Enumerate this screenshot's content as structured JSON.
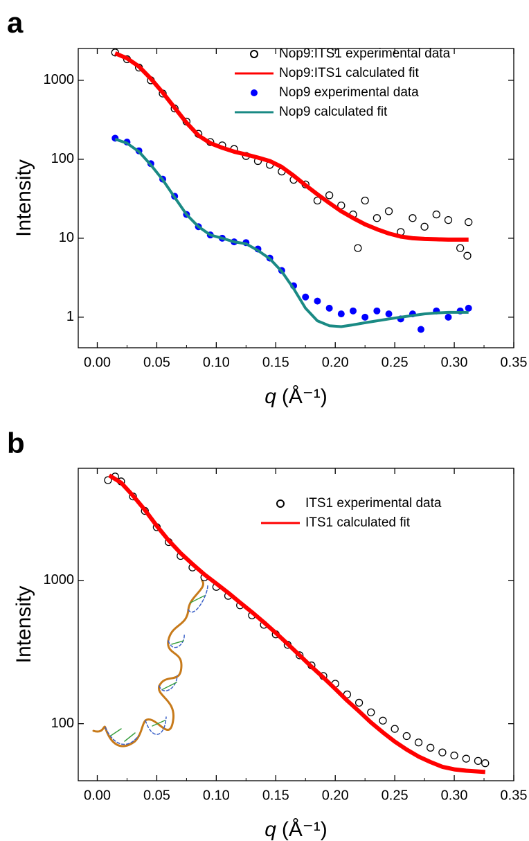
{
  "chart_data": [
    {
      "type": "line",
      "panel_label": "a",
      "y_label": "Intensity",
      "x_label_symbol": "q",
      "x_label_unit": "(Å⁻¹)",
      "log_y": true,
      "legend": "top-right",
      "xlim": [
        -0.016,
        0.35
      ],
      "xticks": [
        {
          "value": 0,
          "label": "0.00"
        },
        {
          "value": 0.05,
          "label": "0.05"
        },
        {
          "value": 0.1,
          "label": "0.10"
        },
        {
          "value": 0.15,
          "label": "0.15"
        },
        {
          "value": 0.2,
          "label": "0.20"
        },
        {
          "value": 0.25,
          "label": "0.25"
        },
        {
          "value": 0.3,
          "label": "0.30"
        },
        {
          "value": 0.35,
          "label": "0.35"
        }
      ],
      "ylim": [
        0.41,
        2530
      ],
      "yticks": [
        1,
        10,
        100,
        1000
      ],
      "series": [
        {
          "name": "Nop9:ITS1 experimental data",
          "style": "open-marker",
          "color": "#000000",
          "x": [
            0.015,
            0.025,
            0.035,
            0.045,
            0.055,
            0.065,
            0.075,
            0.085,
            0.095,
            0.105,
            0.115,
            0.125,
            0.135,
            0.145,
            0.155,
            0.165,
            0.175,
            0.185,
            0.195,
            0.205,
            0.215,
            0.219,
            0.225,
            0.235,
            0.245,
            0.255,
            0.265,
            0.275,
            0.285,
            0.295,
            0.305,
            0.311,
            0.312
          ],
          "values": [
            2250,
            1850,
            1450,
            1000,
            680,
            440,
            300,
            210,
            165,
            150,
            135,
            110,
            95,
            85,
            70,
            55,
            48,
            30,
            35,
            26,
            20,
            7.5,
            30,
            18,
            22,
            12,
            18,
            14,
            20,
            17,
            7.5,
            6,
            16
          ]
        },
        {
          "name": "Nop9:ITS1 calculated fit",
          "style": "line",
          "color": "#ff0000",
          "x": [
            0.015,
            0.025,
            0.035,
            0.045,
            0.055,
            0.065,
            0.075,
            0.085,
            0.095,
            0.105,
            0.115,
            0.125,
            0.135,
            0.145,
            0.155,
            0.165,
            0.175,
            0.185,
            0.195,
            0.205,
            0.215,
            0.225,
            0.235,
            0.245,
            0.255,
            0.265,
            0.275,
            0.285,
            0.295,
            0.312
          ],
          "values": [
            2200,
            1900,
            1500,
            1050,
            700,
            450,
            290,
            200,
            160,
            140,
            125,
            115,
            105,
            95,
            80,
            62,
            47,
            36,
            28,
            22,
            18,
            15,
            13,
            11.5,
            10.5,
            10,
            9.8,
            9.7,
            9.6,
            9.6
          ]
        },
        {
          "name": "Nop9 experimental data",
          "style": "filled-marker",
          "color": "#0000ff",
          "x": [
            0.015,
            0.025,
            0.035,
            0.045,
            0.055,
            0.065,
            0.075,
            0.085,
            0.095,
            0.105,
            0.115,
            0.125,
            0.135,
            0.145,
            0.155,
            0.165,
            0.175,
            0.185,
            0.195,
            0.205,
            0.215,
            0.225,
            0.235,
            0.245,
            0.255,
            0.265,
            0.272,
            0.285,
            0.295,
            0.305,
            0.312
          ],
          "values": [
            185,
            165,
            128,
            88,
            56,
            34,
            20,
            14,
            11,
            10,
            9,
            8.8,
            7.3,
            5.6,
            3.9,
            2.5,
            1.8,
            1.6,
            1.3,
            1.1,
            1.2,
            1.0,
            1.2,
            1.1,
            0.95,
            1.1,
            0.7,
            1.2,
            1.0,
            1.2,
            1.3
          ]
        },
        {
          "name": "Nop9 calculated fit",
          "style": "line",
          "color": "#1a8a84",
          "x": [
            0.015,
            0.025,
            0.035,
            0.045,
            0.055,
            0.065,
            0.075,
            0.085,
            0.095,
            0.105,
            0.115,
            0.125,
            0.135,
            0.145,
            0.155,
            0.165,
            0.175,
            0.185,
            0.195,
            0.205,
            0.215,
            0.225,
            0.235,
            0.245,
            0.255,
            0.265,
            0.275,
            0.285,
            0.295,
            0.312
          ],
          "values": [
            180,
            160,
            125,
            85,
            55,
            33,
            20,
            14,
            11,
            10,
            9,
            8.5,
            7,
            5.5,
            3.8,
            2.3,
            1.3,
            0.9,
            0.78,
            0.76,
            0.8,
            0.85,
            0.9,
            0.95,
            1.0,
            1.05,
            1.1,
            1.13,
            1.15,
            1.15
          ]
        }
      ]
    },
    {
      "type": "line",
      "panel_label": "b",
      "y_label": "Intensity",
      "x_label_symbol": "q",
      "x_label_unit": "(Å⁻¹)",
      "log_y": true,
      "legend": "top-right",
      "xlim": [
        -0.016,
        0.35
      ],
      "xticks": [
        {
          "value": 0,
          "label": "0.00"
        },
        {
          "value": 0.05,
          "label": "0.05"
        },
        {
          "value": 0.1,
          "label": "0.10"
        },
        {
          "value": 0.15,
          "label": "0.15"
        },
        {
          "value": 0.2,
          "label": "0.20"
        },
        {
          "value": 0.25,
          "label": "0.25"
        },
        {
          "value": 0.3,
          "label": "0.30"
        },
        {
          "value": 0.35,
          "label": "0.35"
        }
      ],
      "ylim": [
        40,
        6050
      ],
      "yticks": [
        100,
        1000
      ],
      "series": [
        {
          "name": "ITS1 experimental data",
          "style": "open-marker",
          "color": "#000000",
          "x": [
            0.009,
            0.015,
            0.02,
            0.03,
            0.04,
            0.05,
            0.06,
            0.07,
            0.08,
            0.09,
            0.1,
            0.11,
            0.12,
            0.13,
            0.14,
            0.15,
            0.16,
            0.17,
            0.18,
            0.19,
            0.2,
            0.21,
            0.22,
            0.23,
            0.24,
            0.25,
            0.26,
            0.27,
            0.28,
            0.29,
            0.3,
            0.31,
            0.32,
            0.326
          ],
          "values": [
            5000,
            5300,
            4900,
            3850,
            3050,
            2350,
            1850,
            1480,
            1230,
            1050,
            900,
            780,
            670,
            570,
            490,
            420,
            355,
            300,
            255,
            215,
            190,
            160,
            140,
            120,
            105,
            92,
            82,
            74,
            68,
            63,
            60,
            57,
            55,
            53
          ]
        },
        {
          "name": "ITS1 calculated fit",
          "style": "line",
          "color": "#ff0000",
          "x": [
            0.01,
            0.02,
            0.03,
            0.04,
            0.05,
            0.06,
            0.07,
            0.08,
            0.09,
            0.1,
            0.11,
            0.12,
            0.13,
            0.14,
            0.15,
            0.16,
            0.17,
            0.18,
            0.19,
            0.2,
            0.21,
            0.22,
            0.23,
            0.24,
            0.25,
            0.26,
            0.27,
            0.28,
            0.29,
            0.3,
            0.31,
            0.326
          ],
          "values": [
            5400,
            4800,
            3900,
            3100,
            2400,
            1900,
            1550,
            1300,
            1100,
            950,
            820,
            700,
            600,
            510,
            430,
            360,
            300,
            250,
            210,
            175,
            145,
            122,
            102,
            87,
            75,
            66,
            59,
            54,
            50,
            48,
            47,
            46
          ]
        }
      ]
    }
  ]
}
